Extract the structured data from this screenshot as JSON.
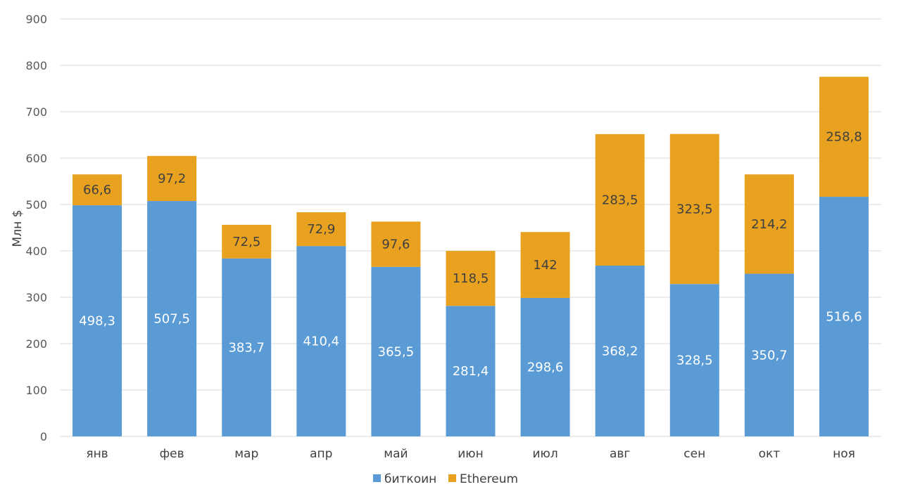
{
  "chart_data": {
    "type": "bar",
    "stacked": true,
    "title": "",
    "xlabel": "",
    "ylabel": "Млн $",
    "ylim": [
      0,
      900
    ],
    "yticks": [
      0,
      100,
      200,
      300,
      400,
      500,
      600,
      700,
      800,
      900
    ],
    "grid": true,
    "legend_position": "bottom",
    "categories": [
      "янв",
      "фев",
      "мар",
      "апр",
      "май",
      "июн",
      "июл",
      "авг",
      "сен",
      "окт",
      "ноя"
    ],
    "series": [
      {
        "name": "биткоин",
        "color": "#5B9BD5",
        "label_color": "#ffffff",
        "values": [
          498.3,
          507.5,
          383.7,
          410.4,
          365.5,
          281.4,
          298.6,
          368.2,
          328.5,
          350.7,
          516.6
        ],
        "labels": [
          "498,3",
          "507,5",
          "383,7",
          "410,4",
          "365,5",
          "281,4",
          "298,6",
          "368,2",
          "328,5",
          "350,7",
          "516,6"
        ]
      },
      {
        "name": "Ethereum",
        "color": "#E8A220",
        "label_color": "#404040",
        "values": [
          66.6,
          97.2,
          72.5,
          72.9,
          97.6,
          118.5,
          142,
          283.5,
          323.5,
          214.2,
          258.8
        ],
        "labels": [
          "66,6",
          "97,2",
          "72,5",
          "72,9",
          "97,6",
          "118,5",
          "142",
          "283,5",
          "323,5",
          "214,2",
          "258,8"
        ]
      }
    ]
  }
}
